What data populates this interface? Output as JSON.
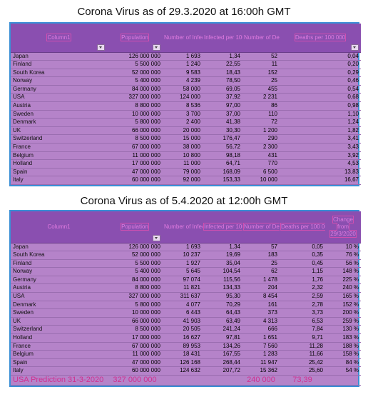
{
  "table1": {
    "title": "Corona Virus as of 29.3.2020 at 16:00h GMT",
    "headers": [
      "Column1",
      "Population",
      "Number of Infected",
      "Infected per 100 000",
      "Number of Deaths",
      "Deaths per 100 000"
    ],
    "rows": [
      [
        "Japan",
        "126 000 000",
        "1 693",
        "1,34",
        "52",
        "0,04"
      ],
      [
        "Finland",
        "5 500 000",
        "1 240",
        "22,55",
        "11",
        "0,20"
      ],
      [
        "South Korea",
        "52 000 000",
        "9 583",
        "18,43",
        "152",
        "0,29"
      ],
      [
        "Norway",
        "5 400 000",
        "4 239",
        "78,50",
        "25",
        "0,46"
      ],
      [
        "Germany",
        "84 000 000",
        "58 000",
        "69,05",
        "455",
        "0,54"
      ],
      [
        "USA",
        "327 000 000",
        "124 000",
        "37,92",
        "2 231",
        "0,68"
      ],
      [
        "Austria",
        "8 800 000",
        "8 536",
        "97,00",
        "86",
        "0,98"
      ],
      [
        "Sweden",
        "10 000 000",
        "3 700",
        "37,00",
        "110",
        "1,10"
      ],
      [
        "Denmark",
        "5 800 000",
        "2 400",
        "41,38",
        "72",
        "1,24"
      ],
      [
        "UK",
        "66 000 000",
        "20 000",
        "30,30",
        "1 200",
        "1,82"
      ],
      [
        "Switzerland",
        "8 500 000",
        "15 000",
        "176,47",
        "290",
        "3,41"
      ],
      [
        "France",
        "67 000 000",
        "38 000",
        "56,72",
        "2 300",
        "3,43"
      ],
      [
        "Belgium",
        "11 000 000",
        "10 800",
        "98,18",
        "431",
        "3,92"
      ],
      [
        "Holland",
        "17 000 000",
        "11 000",
        "64,71",
        "770",
        "4,53"
      ],
      [
        "Spain",
        "47 000 000",
        "79 000",
        "168,09",
        "6 500",
        "13,83"
      ],
      [
        "Italy",
        "60 000 000",
        "92 000",
        "153,33",
        "10 000",
        "16,67"
      ]
    ]
  },
  "table2": {
    "title": "Corona Virus as of 5.4.2020 at 12:00h GMT",
    "headers": [
      "Column1",
      "Population",
      "Number of Infected",
      "Infected per 100 000",
      "Number of Deaths",
      "Deaths per 100 000",
      "Change from 29/3/2020"
    ],
    "rows": [
      [
        "Japan",
        "126 000 000",
        "1 693",
        "1,34",
        "57",
        "0,05",
        "10 %"
      ],
      [
        "South Korea",
        "52 000 000",
        "10 237",
        "19,69",
        "183",
        "0,35",
        "76 %"
      ],
      [
        "Finland",
        "5 500 000",
        "1 927",
        "35,04",
        "25",
        "0,45",
        "56 %"
      ],
      [
        "Norway",
        "5 400 000",
        "5 645",
        "104,54",
        "62",
        "1,15",
        "148 %"
      ],
      [
        "Germany",
        "84 000 000",
        "97 074",
        "115,56",
        "1 478",
        "1,76",
        "225 %"
      ],
      [
        "Austria",
        "8 800 000",
        "11 821",
        "134,33",
        "204",
        "2,32",
        "240 %"
      ],
      [
        "USA",
        "327 000 000",
        "311 637",
        "95,30",
        "8 454",
        "2,59",
        "165 %"
      ],
      [
        "Denmark",
        "5 800 000",
        "4 077",
        "70,29",
        "161",
        "2,78",
        "152 %"
      ],
      [
        "Sweden",
        "10 000 000",
        "6 443",
        "64,43",
        "373",
        "3,73",
        "200 %"
      ],
      [
        "UK",
        "66 000 000",
        "41 903",
        "63,49",
        "4 313",
        "6,53",
        "259 %"
      ],
      [
        "Switzerland",
        "8 500 000",
        "20 505",
        "241,24",
        "666",
        "7,84",
        "130 %"
      ],
      [
        "Holland",
        "17 000 000",
        "16 627",
        "97,81",
        "1 651",
        "9,71",
        "183 %"
      ],
      [
        "France",
        "67 000 000",
        "89 953",
        "134,26",
        "7 560",
        "11,28",
        "188 %"
      ],
      [
        "Belgium",
        "11 000 000",
        "18 431",
        "167,55",
        "1 283",
        "11,66",
        "158 %"
      ],
      [
        "Spain",
        "47 000 000",
        "126 168",
        "268,44",
        "11 947",
        "25,42",
        "84 %"
      ],
      [
        "Italy",
        "60 000 000",
        "124 632",
        "207,72",
        "15 362",
        "25,60",
        "54 %"
      ]
    ],
    "prediction": [
      "USA Prediction 31-3-2020",
      "327 000 000",
      "",
      "",
      "240 000",
      "73,39",
      ""
    ]
  }
}
